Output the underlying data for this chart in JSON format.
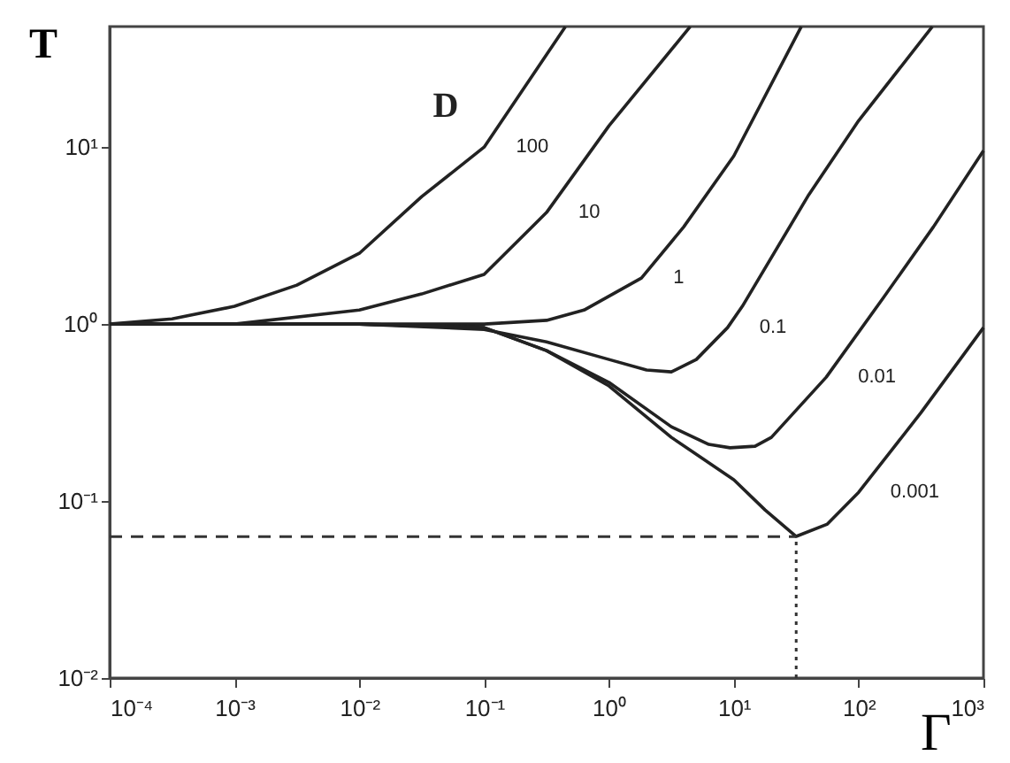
{
  "chart_data": {
    "type": "line",
    "xlabel": "Γ",
    "ylabel": "T",
    "log": "xy",
    "grid": false,
    "marker": "none",
    "line_style": "solid",
    "xlim": [
      0.0001,
      1000
    ],
    "ylim": [
      0.01,
      48
    ],
    "xticks": [
      {
        "value": 0.0001,
        "label": "10⁻⁴"
      },
      {
        "value": 0.001,
        "label": "10⁻³"
      },
      {
        "value": 0.01,
        "label": "10⁻²"
      },
      {
        "value": 0.1,
        "label": "10⁻¹"
      },
      {
        "value": 1,
        "label": "10⁰"
      },
      {
        "value": 10,
        "label": "10¹"
      },
      {
        "value": 100,
        "label": "10²"
      },
      {
        "value": 1000,
        "label": "10³"
      }
    ],
    "yticks": [
      {
        "value": 0.01,
        "label": "10⁻²"
      },
      {
        "value": 0.1,
        "label": "10⁻¹"
      },
      {
        "value": 1,
        "label": "10⁰"
      },
      {
        "value": 10,
        "label": "10¹"
      }
    ],
    "series": [
      {
        "color": "#222222",
        "x": [
          0.0001,
          0.000316,
          0.001,
          0.00316,
          0.01,
          0.0316,
          0.1,
          0.447
        ],
        "values": [
          1,
          1.07,
          1.26,
          1.66,
          2.51,
          5.25,
          10,
          47.9
        ]
      },
      {
        "color": "#222222",
        "x": [
          0.0001,
          0.001,
          0.01,
          0.0316,
          0.1,
          0.316,
          1,
          4.47
        ],
        "values": [
          1,
          1,
          1.2,
          1.48,
          1.91,
          4.27,
          13.2,
          47.9
        ]
      },
      {
        "color": "#222222",
        "x": [
          0.0001,
          0.1,
          0.316,
          0.631,
          1.82,
          3.98,
          10,
          34.7
        ],
        "values": [
          1,
          1,
          1.05,
          1.2,
          1.82,
          3.55,
          8.91,
          47.9
        ]
      },
      {
        "color": "#222222",
        "x": [
          0.0001,
          0.01,
          0.1,
          0.316,
          1,
          2,
          3.16,
          5.01,
          8.91,
          11.7,
          39.8,
          100,
          389
        ],
        "values": [
          1,
          1,
          0.933,
          0.794,
          0.631,
          0.55,
          0.537,
          0.631,
          0.955,
          1.26,
          5.37,
          14.1,
          47.9
        ]
      },
      {
        "color": "#222222",
        "x": [
          0.0001,
          0.01,
          0.1,
          0.316,
          1,
          3.16,
          6.31,
          9.33,
          14.8,
          20,
          55,
          158,
          398,
          1000
        ],
        "values": [
          1,
          1,
          0.955,
          0.708,
          0.468,
          0.263,
          0.209,
          0.2,
          0.204,
          0.229,
          0.501,
          1.41,
          3.55,
          9.55
        ]
      },
      {
        "color": "#222222",
        "x": [
          0.0001,
          0.01,
          0.1,
          0.316,
          1,
          3.16,
          10,
          17.8,
          31.6,
          56.2,
          100,
          316,
          1000
        ],
        "values": [
          1,
          1,
          0.955,
          0.708,
          0.447,
          0.229,
          0.132,
          0.0891,
          0.0631,
          0.0741,
          0.112,
          0.316,
          0.955
        ]
      }
    ],
    "ref_lines": [
      {
        "axis": "y",
        "value": 0.063,
        "color": "#333333",
        "line_style": "dashed"
      },
      {
        "axis": "x",
        "value": 31.6,
        "color": "#333333",
        "line_style": "dotted"
      }
    ],
    "annotations": [
      "D",
      {
        "text": "100",
        "x": 0.1,
        "y": 10
      },
      {
        "text": "10",
        "x": 0.316,
        "y": 4.27
      },
      {
        "text": "1",
        "x": 1.82,
        "y": 1.82
      },
      {
        "text": "0.1",
        "x": 8.91,
        "y": 0.955
      },
      {
        "text": "0.01",
        "x": 55,
        "y": 0.501
      },
      {
        "text": "0.001",
        "x": 100,
        "y": 0.112
      }
    ]
  }
}
